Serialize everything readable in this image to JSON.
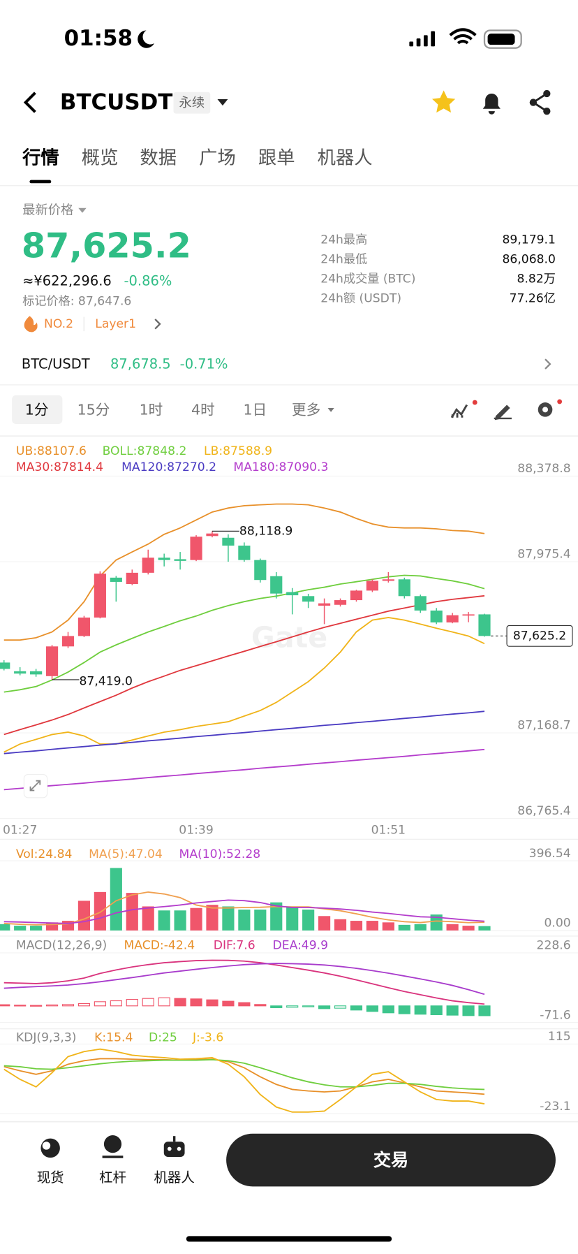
{
  "status_bar": {
    "time": "01:58"
  },
  "header": {
    "symbol": "BTCUSDT",
    "badge": "永续"
  },
  "tabs": [
    "行情",
    "概览",
    "数据",
    "广场",
    "跟单",
    "机器人"
  ],
  "price": {
    "label": "最新价格",
    "last": "87,625.2",
    "cny": "≈¥622,296.6",
    "change": "-0.86%",
    "mark": "标记价格: 87,647.6",
    "rank": "NO.2",
    "tag": "Layer1"
  },
  "stats": [
    {
      "label": "24h最高",
      "value": "89,179.1"
    },
    {
      "label": "24h最低",
      "value": "86,068.0"
    },
    {
      "label": "24h成交量 (BTC)",
      "value": "8.82万"
    },
    {
      "label": "24h额 (USDT)",
      "value": "77.26亿"
    }
  ],
  "spot": {
    "pair": "BTC/USDT",
    "price": "87,678.5",
    "change": "-0.71%"
  },
  "intervals": [
    "1分",
    "15分",
    "1时",
    "4时",
    "1日",
    "更多"
  ],
  "chart_data": {
    "type": "candlestick",
    "categories": [
      null,
      "01:27",
      null,
      null,
      null,
      null,
      null,
      null,
      null,
      null,
      null,
      null,
      "01:39",
      null,
      null,
      null,
      null,
      null,
      null,
      null,
      null,
      null,
      null,
      null,
      "01:51",
      null,
      null,
      null,
      null,
      null,
      null
    ],
    "candles": {
      "up_color": "#f0566b",
      "down_color": "#3dc58c",
      "open": [
        87500,
        87459,
        87459,
        87436,
        87576,
        87625,
        87712,
        87900,
        87870,
        87923,
        87994,
        87987,
        87983,
        88096,
        88088,
        88051,
        87983,
        87907,
        87832,
        87813,
        87768,
        87772,
        87794,
        87839,
        87885,
        87892,
        87813,
        87745,
        87689,
        87723,
        87727
      ],
      "high": [
        87511,
        87478,
        87470,
        87583,
        87644,
        87720,
        87930,
        87908,
        87938,
        88032,
        88013,
        88021,
        88100,
        88118.9,
        88104,
        88066,
        87990,
        87926,
        87851,
        87824,
        87802,
        87802,
        87843,
        87892,
        87926,
        87900,
        87820,
        87757,
        87734,
        87738,
        87730
      ],
      "low": [
        87463,
        87440,
        87433,
        87419,
        87568,
        87620,
        87708,
        87787,
        87865,
        87915,
        87953,
        87938,
        87978,
        88090,
        87975,
        87975,
        87877,
        87802,
        87727,
        87757,
        87681,
        87764,
        87787,
        87832,
        87877,
        87802,
        87734,
        87681,
        87685,
        87690,
        87622
      ],
      "close": [
        87470,
        87448,
        87444,
        87576,
        87625,
        87712,
        87919,
        87880,
        87923,
        87994,
        87983,
        87979,
        88093,
        88108,
        88051,
        87983,
        87889,
        87825,
        87817,
        87787,
        87779,
        87794,
        87839,
        87885,
        87892,
        87813,
        87745,
        87689,
        87723,
        87727,
        87625.2
      ]
    },
    "ylim": [
      86765.4,
      88378.8
    ],
    "yticks": [
      {
        "value": 88378.8,
        "label": "88,378.8"
      },
      {
        "value": 87975.4,
        "label": "87,975.4"
      },
      {
        "value": 87168.7,
        "label": "87,168.7"
      },
      {
        "value": 86765.4,
        "label": "86,765.4"
      }
    ],
    "grid": true,
    "max_label": "88,118.9",
    "min_label": "87,419.0",
    "last_price": "87,625.2",
    "watermark": "Gate",
    "overlays": [
      {
        "legend": "UB:88107.6",
        "color": "#e8902a",
        "values": [
          87606,
          87606,
          87617,
          87644,
          87700,
          87787,
          87908,
          87983,
          88021,
          88058,
          88104,
          88134,
          88172,
          88209,
          88228,
          88239,
          88243,
          88247,
          88247,
          88243,
          88228,
          88209,
          88179,
          88153,
          88138,
          88134,
          88134,
          88130,
          88122,
          88119,
          88107.6
        ]
      },
      {
        "legend": "BOLL:87848.2",
        "color": "#6fce3e",
        "values": [
          87361,
          87372,
          87387,
          87418,
          87455,
          87500,
          87549,
          87583,
          87614,
          87644,
          87670,
          87697,
          87719,
          87746,
          87768,
          87787,
          87802,
          87813,
          87828,
          87843,
          87855,
          87870,
          87881,
          87892,
          87904,
          87911,
          87908,
          87896,
          87885,
          87870,
          87848.2
        ]
      },
      {
        "legend": "LB:87588.9",
        "color": "#f0b41a",
        "values": [
          87078,
          87116,
          87138,
          87161,
          87172,
          87154,
          87116,
          87116,
          87135,
          87154,
          87172,
          87184,
          87199,
          87210,
          87221,
          87248,
          87274,
          87312,
          87361,
          87410,
          87474,
          87549,
          87644,
          87700,
          87712,
          87700,
          87681,
          87662,
          87644,
          87625,
          87588.9
        ]
      },
      {
        "legend": "MA30:87814.4",
        "color": "#e0383e",
        "values": [
          87161,
          87184,
          87206,
          87229,
          87255,
          87286,
          87316,
          87346,
          87380,
          87410,
          87436,
          87463,
          87485,
          87508,
          87531,
          87553,
          87576,
          87598,
          87621,
          87644,
          87666,
          87685,
          87704,
          87723,
          87742,
          87757,
          87772,
          87787,
          87798,
          87806,
          87814.4
        ]
      },
      {
        "legend": "MA120:87270.2",
        "color": "#4a3bc2",
        "values": [
          87071,
          87078,
          87084,
          87091,
          87098,
          87104,
          87111,
          87117,
          87124,
          87131,
          87137,
          87144,
          87151,
          87157,
          87164,
          87170,
          87177,
          87184,
          87190,
          87197,
          87204,
          87210,
          87217,
          87223,
          87230,
          87237,
          87243,
          87250,
          87257,
          87263,
          87270.2
        ]
      },
      {
        "legend": "MA180:87090.3",
        "color": "#b43dcc",
        "values": [
          86901,
          86907,
          86914,
          86920,
          86926,
          86932,
          86939,
          86945,
          86951,
          86958,
          86964,
          86970,
          86977,
          86983,
          86989,
          86995,
          87002,
          87008,
          87014,
          87021,
          87027,
          87033,
          87040,
          87046,
          87052,
          87058,
          87065,
          87071,
          87077,
          87084,
          87090.3
        ]
      }
    ],
    "volume": {
      "legend": "Vol:24.84",
      "color": "#e8902a",
      "ylim": [
        0,
        396.54
      ],
      "yticks": [
        {
          "value": 396.54,
          "label": "396.54"
        },
        {
          "value": 0,
          "label": "0.00"
        }
      ],
      "values": [
        36,
        27,
        27,
        46,
        55,
        169,
        219,
        356,
        214,
        137,
        114,
        114,
        128,
        146,
        137,
        119,
        119,
        160,
        137,
        119,
        82,
        64,
        55,
        55,
        46,
        32,
        36,
        91,
        36,
        27,
        24.84
      ],
      "ma": [
        {
          "legend": "MA(5):47.04",
          "color": "#f0a050",
          "values": [
            40,
            35,
            32,
            34,
            38,
            65,
            103,
            169,
            203,
            219,
            208,
            187,
            145,
            128,
            128,
            131,
            132,
            136,
            134,
            134,
            123,
            112,
            95,
            75,
            60,
            50,
            45,
            54,
            50,
            44,
            47.04
          ]
        },
        {
          "legend": "MA(10):52.28",
          "color": "#b43dcc",
          "values": [
            50,
            48,
            45,
            42,
            40,
            50,
            70,
            100,
            118,
            128,
            136,
            145,
            157,
            165,
            173,
            170,
            159,
            140,
            131,
            131,
            127,
            122,
            115,
            105,
            97,
            87,
            78,
            75,
            67,
            59,
            52.28
          ]
        }
      ]
    },
    "macd": {
      "title": "MACD(12,26,9)",
      "legend": "MACD:-42.4",
      "legend_color": "#e8902a",
      "ylim": [
        -71.6,
        228.6
      ],
      "yticks": [
        228.6,
        -71.6
      ],
      "histogram": [
        5,
        3,
        2,
        4,
        6,
        10,
        18,
        22,
        28,
        32,
        35,
        32,
        30,
        26,
        20,
        14,
        6,
        -8,
        -6,
        -4,
        -12,
        -10,
        -18,
        -24,
        -30,
        -34,
        -36,
        -38,
        -40,
        -42,
        -42.4
      ],
      "lines": [
        {
          "legend": "DIF:7.6",
          "color": "#d9337d",
          "values": [
            100,
            98,
            96,
            100,
            108,
            120,
            140,
            155,
            168,
            178,
            186,
            191,
            195,
            197,
            196,
            193,
            186,
            176,
            165,
            154,
            142,
            128,
            112,
            95,
            78,
            62,
            48,
            34,
            22,
            14,
            7.6
          ]
        },
        {
          "legend": "DEA:49.9",
          "color": "#a83ccc",
          "values": [
            76,
            80,
            83,
            86,
            90,
            96,
            104,
            113,
            122,
            132,
            142,
            150,
            158,
            165,
            172,
            178,
            181,
            183,
            182,
            180,
            176,
            170,
            162,
            152,
            141,
            129,
            116,
            103,
            88,
            70,
            49.9
          ]
        }
      ]
    },
    "kdj": {
      "title": "KDJ(9,3,3)",
      "ylim": [
        -23.1,
        115
      ],
      "yticks": [
        115,
        -23.1
      ],
      "lines": [
        {
          "legend": "K:15.4",
          "color": "#e8902a",
          "values": [
            70,
            62,
            55,
            62,
            75,
            82,
            86,
            86,
            85,
            84,
            84,
            83,
            84,
            85,
            80,
            68,
            50,
            35,
            25,
            22,
            20,
            22,
            30,
            40,
            45,
            38,
            30,
            22,
            20,
            18,
            15.4
          ]
        },
        {
          "legend": "D:25",
          "color": "#6fce3e",
          "values": [
            72,
            70,
            66,
            65,
            68,
            72,
            76,
            79,
            81,
            82,
            83,
            83,
            83,
            84,
            82,
            77,
            68,
            58,
            48,
            40,
            34,
            30,
            30,
            33,
            37,
            37,
            35,
            31,
            28,
            26,
            25
          ]
        },
        {
          "legend": "J:-3.6",
          "color": "#f0b41a",
          "values": [
            65,
            45,
            30,
            58,
            90,
            100,
            105,
            100,
            93,
            90,
            88,
            85,
            86,
            88,
            75,
            50,
            15,
            -10,
            -20,
            -20,
            -18,
            5,
            30,
            55,
            60,
            40,
            20,
            5,
            2,
            2,
            -3.6
          ]
        }
      ]
    }
  },
  "bottom_nav": [
    "现货",
    "杠杆",
    "机器人"
  ],
  "trade_button": "交易"
}
